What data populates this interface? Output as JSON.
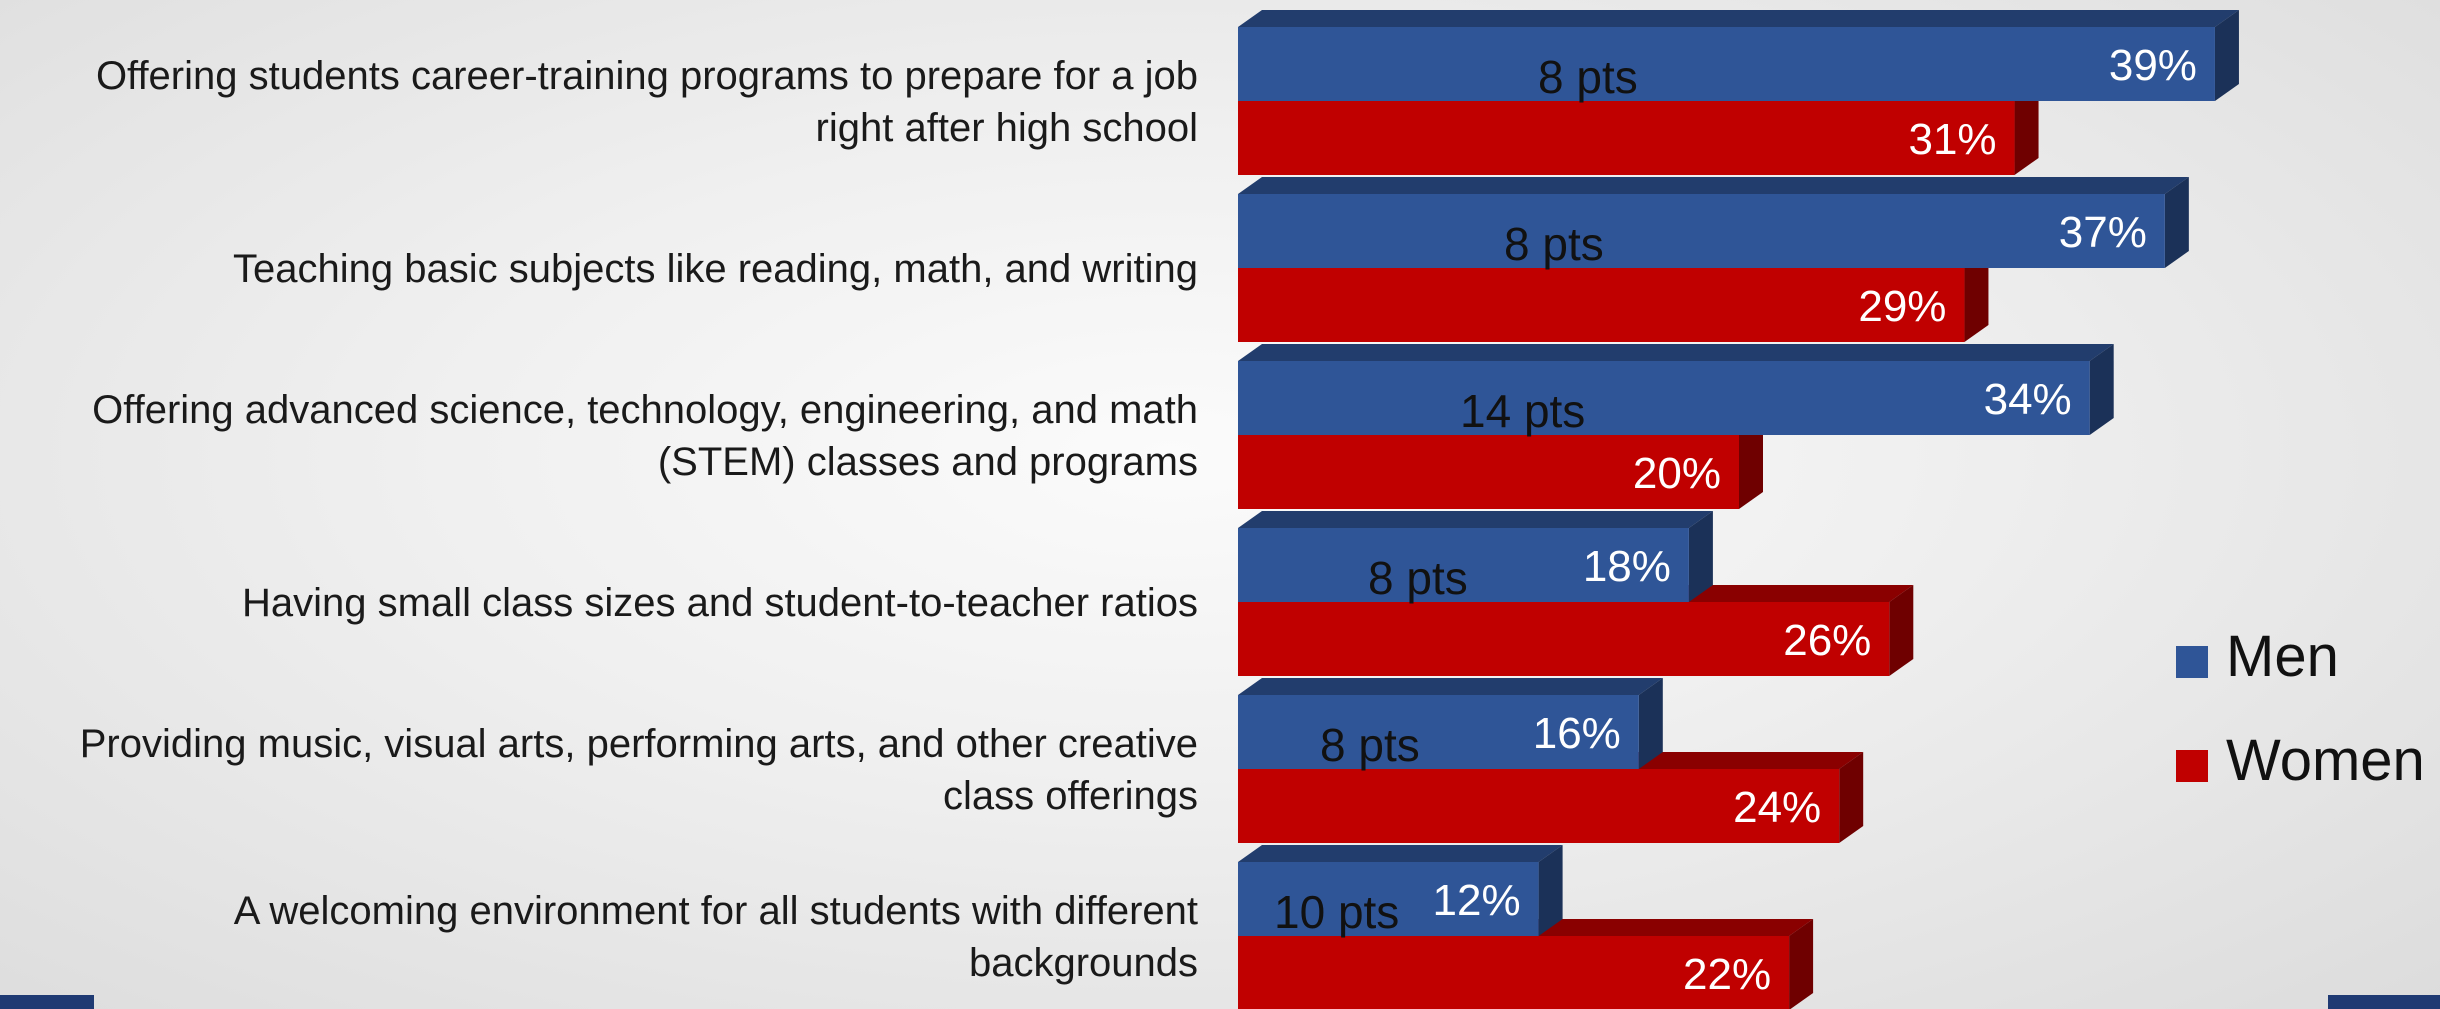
{
  "chart_data": {
    "type": "bar",
    "orientation": "horizontal",
    "categories": [
      [
        "Offering students career-training programs to prepare for a job",
        "right after high school"
      ],
      [
        "Teaching basic subjects like reading, math, and writing"
      ],
      [
        "Offering advanced science, technology, engineering, and math",
        "(STEM) classes and programs"
      ],
      [
        "Having small class sizes and student-to-teacher ratios"
      ],
      [
        "Providing music, visual arts, performing arts, and other creative",
        "class offerings"
      ],
      [
        "A welcoming environment for all students with different",
        "backgrounds"
      ]
    ],
    "series": [
      {
        "name": "Men",
        "color": "#2f5597",
        "values": [
          39,
          37,
          34,
          18,
          16,
          12
        ]
      },
      {
        "name": "Women",
        "color": "#c00000",
        "values": [
          31,
          29,
          20,
          26,
          24,
          22
        ]
      }
    ],
    "value_labels": {
      "Men": [
        "39%",
        "37%",
        "34%",
        "18%",
        "16%",
        "12%"
      ],
      "Women": [
        "31%",
        "29%",
        "20%",
        "26%",
        "24%",
        "22%"
      ]
    },
    "differences": [
      "8 pts",
      "8 pts",
      "14 pts",
      "8 pts",
      "8 pts",
      "10 pts"
    ],
    "xlim": [
      0,
      40
    ],
    "legend": {
      "position": "right",
      "entries": [
        "Men",
        "Women"
      ]
    },
    "grid": false,
    "style": "3d-bar"
  }
}
